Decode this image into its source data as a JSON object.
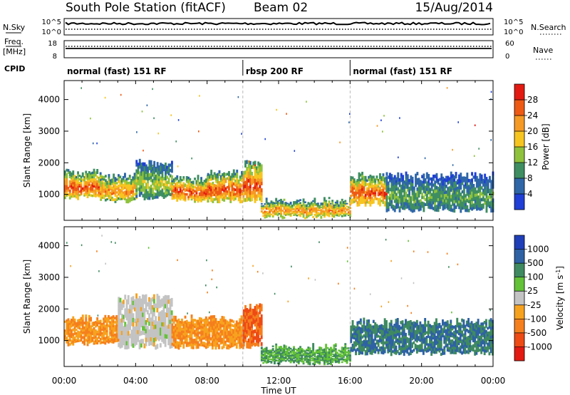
{
  "header": {
    "station": "South Pole Station (fitACF)",
    "beam": "Beam 02",
    "date": "15/Aug/2014"
  },
  "noise_panel": {
    "left_label": "N.Sky",
    "left_ticks": [
      "10^5",
      "10^0"
    ],
    "right_label": "N.Search",
    "right_ticks": [
      "10^5",
      "10^0"
    ]
  },
  "freq_panel": {
    "left_label_1": "Freq.",
    "left_label_2": "[MHz]",
    "left_ticks": [
      "18",
      "8"
    ],
    "right_label": "Nave",
    "right_ticks": [
      "60",
      "0"
    ]
  },
  "cpid": {
    "label": "CPID",
    "segments": [
      {
        "label": "normal (fast) 151 RF",
        "start_h": 0,
        "end_h": 10
      },
      {
        "label": "rbsp 200 RF",
        "start_h": 10,
        "end_h": 16
      },
      {
        "label": "normal (fast) 151 RF",
        "start_h": 16,
        "end_h": 24
      }
    ]
  },
  "colorbars": {
    "power": {
      "title": "Power [dB]",
      "ticks": [
        "4",
        "8",
        "12",
        "16",
        "20",
        "24",
        "28"
      ],
      "colors": [
        "#1f3fd6",
        "#2e66a8",
        "#3e8e62",
        "#8fc23c",
        "#f7c520",
        "#f59a25",
        "#ee5a14",
        "#e31a12"
      ]
    },
    "velocity": {
      "title": "Velocity [m s",
      "title_sup": "-1",
      "title_end": "]",
      "ticks": [
        "1000",
        "500",
        "100",
        "25",
        "-25",
        "-100",
        "-500",
        "-1000"
      ],
      "colors": [
        "#1f3fb8",
        "#2e62a4",
        "#3f8a60",
        "#63c237",
        "#c3c3c3",
        "#f7a21e",
        "#f57f1d",
        "#ee4a14",
        "#e31a12"
      ]
    }
  },
  "chart_data": [
    {
      "type": "heatmap",
      "name": "power",
      "ylabel": "Slant Range [km]",
      "xlim": [
        0,
        24
      ],
      "ylim": [
        180,
        4600
      ],
      "yticks": [
        1000,
        2000,
        3000,
        4000
      ],
      "xticks": [
        "00:00",
        "04:00",
        "08:00",
        "12:00",
        "16:00",
        "20:00",
        "00:00"
      ],
      "bands": [
        {
          "t_start": 0.0,
          "t_end": 2.0,
          "low_km": 900,
          "high_km": 1700,
          "peak": 28
        },
        {
          "t_start": 2.0,
          "t_end": 4.0,
          "low_km": 800,
          "high_km": 1600,
          "peak": 24
        },
        {
          "t_start": 4.0,
          "t_end": 6.0,
          "low_km": 900,
          "high_km": 2000,
          "peak": 16
        },
        {
          "t_start": 6.0,
          "t_end": 8.0,
          "low_km": 800,
          "high_km": 1500,
          "peak": 28
        },
        {
          "t_start": 8.0,
          "t_end": 10.0,
          "low_km": 800,
          "high_km": 1700,
          "peak": 28
        },
        {
          "t_start": 10.0,
          "t_end": 11.0,
          "low_km": 800,
          "high_km": 2100,
          "peak": 28
        },
        {
          "t_start": 11.0,
          "t_end": 16.0,
          "low_km": 300,
          "high_km": 800,
          "peak": 24
        },
        {
          "t_start": 16.0,
          "t_end": 18.0,
          "low_km": 700,
          "high_km": 1600,
          "peak": 28
        },
        {
          "t_start": 18.0,
          "t_end": 24.0,
          "low_km": 500,
          "high_km": 1600,
          "peak": 12
        }
      ]
    },
    {
      "type": "heatmap",
      "name": "velocity",
      "ylabel": "Slant Range [km]",
      "xlabel": "Time UT",
      "xlim": [
        0,
        24
      ],
      "ylim": [
        180,
        4600
      ],
      "yticks": [
        1000,
        2000,
        3000,
        4000
      ],
      "xticks": [
        "00:00",
        "04:00",
        "08:00",
        "12:00",
        "16:00",
        "20:00",
        "00:00"
      ],
      "bands": [
        {
          "t_start": 0.0,
          "t_end": 3.0,
          "low_km": 900,
          "high_km": 1700,
          "vel": -100
        },
        {
          "t_start": 3.0,
          "t_end": 6.0,
          "low_km": 800,
          "high_km": 2400,
          "vel": 0
        },
        {
          "t_start": 6.0,
          "t_end": 10.0,
          "low_km": 800,
          "high_km": 1700,
          "vel": -100
        },
        {
          "t_start": 10.0,
          "t_end": 11.0,
          "low_km": 800,
          "high_km": 2100,
          "vel": -500
        },
        {
          "t_start": 11.0,
          "t_end": 16.0,
          "low_km": 300,
          "high_km": 800,
          "vel": 100
        },
        {
          "t_start": 16.0,
          "t_end": 24.0,
          "low_km": 600,
          "high_km": 1600,
          "vel": 500
        }
      ]
    }
  ]
}
